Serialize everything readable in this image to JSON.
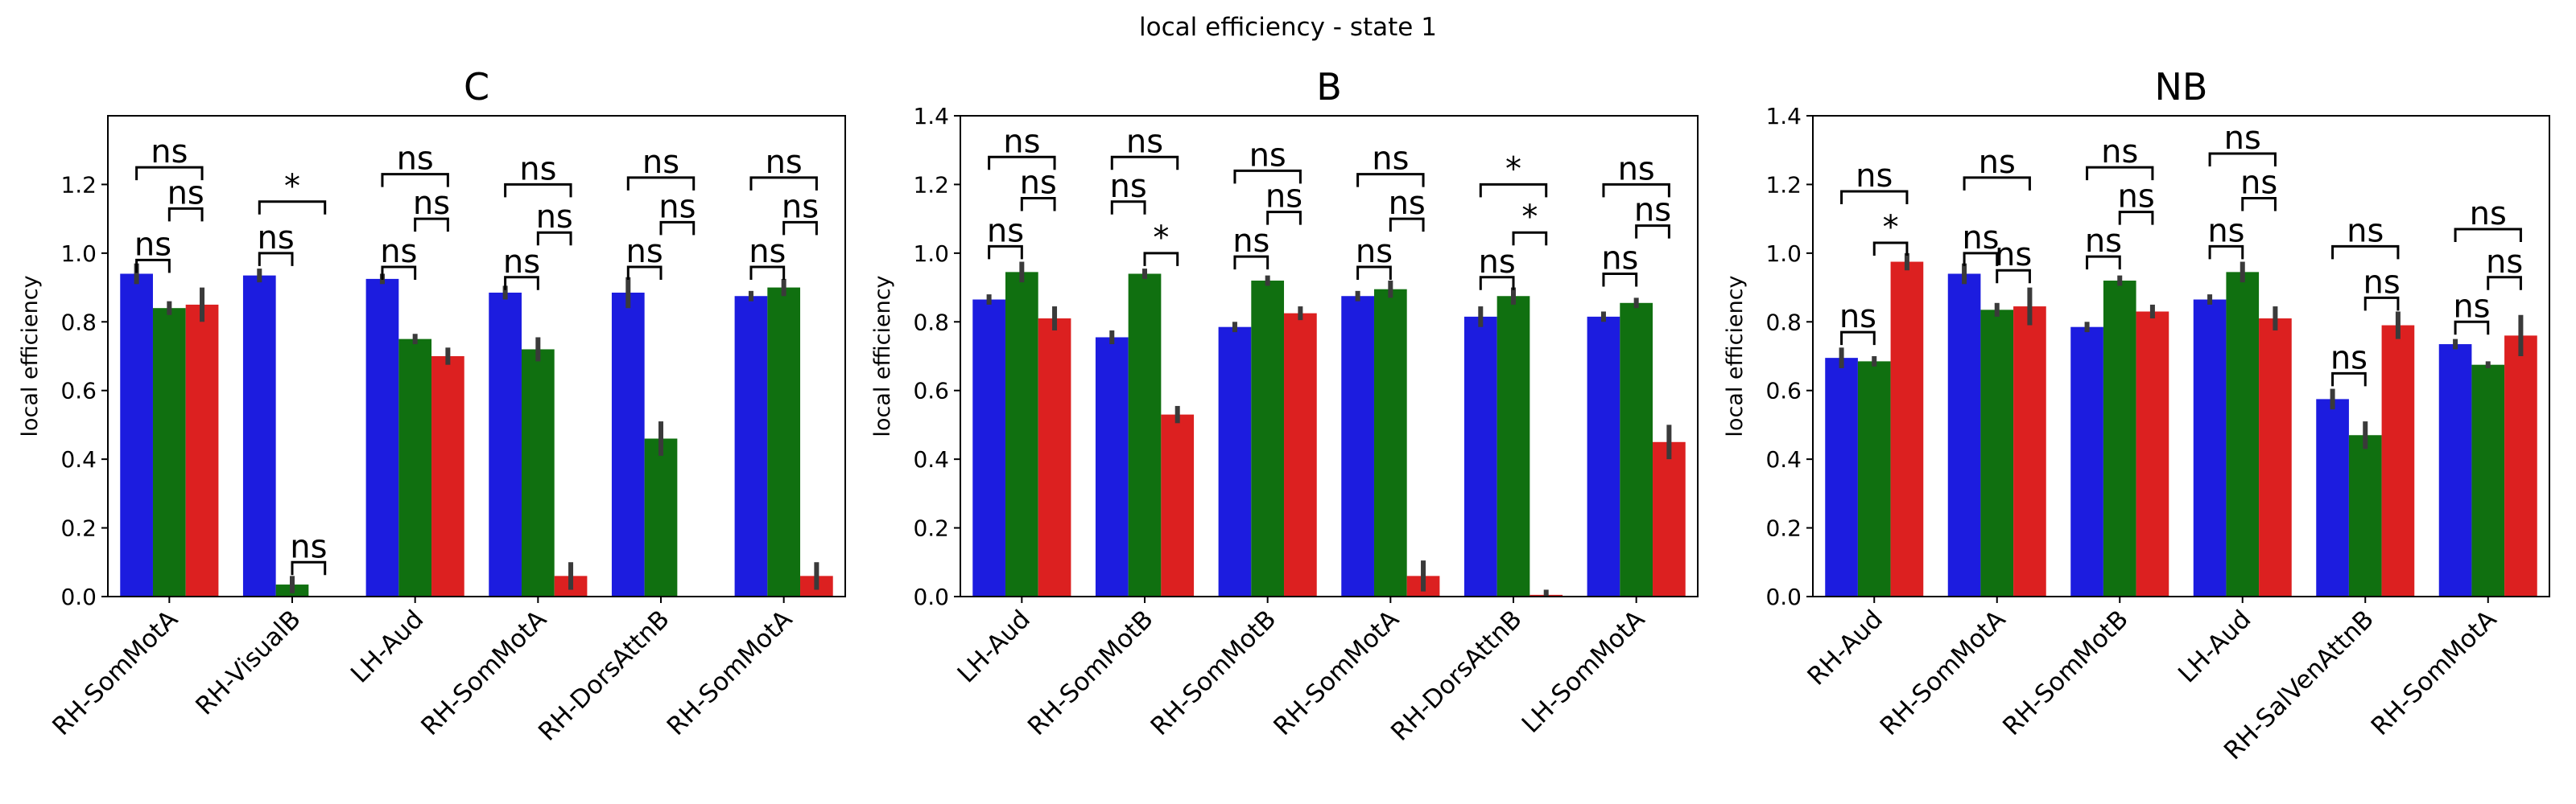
{
  "figure_title": "local efficiency - state 1",
  "series_colors": [
    "#1c1cdf",
    "#107010",
    "#dc2020"
  ],
  "errorbar_color": "#3a3a3a",
  "chart_data": [
    {
      "type": "bar",
      "title": "C",
      "ylabel": "local efficiency",
      "ylim": [
        0,
        1.4
      ],
      "yticks": [
        "0.0",
        "0.2",
        "0.4",
        "0.6",
        "0.8",
        "1.0",
        "1.2"
      ],
      "categories": [
        "RH-SomMotA",
        "RH-VisualB",
        "LH-Aud",
        "RH-SomMotA",
        "RH-DorsAttnB",
        "RH-SomMotA"
      ],
      "series": [
        {
          "values": [
            0.94,
            0.935,
            0.925,
            0.885,
            0.885,
            0.875
          ],
          "errors": [
            0.03,
            0.02,
            0.015,
            0.02,
            0.045,
            0.015
          ]
        },
        {
          "values": [
            0.84,
            0.035,
            0.75,
            0.72,
            0.46,
            0.9
          ],
          "errors": [
            0.02,
            0.025,
            0.015,
            0.035,
            0.05,
            0.025
          ]
        },
        {
          "values": [
            0.85,
            0.0,
            0.7,
            0.06,
            0.0,
            0.06
          ],
          "errors": [
            0.05,
            0.0,
            0.025,
            0.04,
            0.0,
            0.04
          ]
        }
      ],
      "annotations": [
        {
          "group": 0,
          "from": 0,
          "to": 1,
          "level": 0.98,
          "text": "ns"
        },
        {
          "group": 0,
          "from": 1,
          "to": 2,
          "level": 1.13,
          "text": "ns"
        },
        {
          "group": 0,
          "from": 0,
          "to": 2,
          "level": 1.25,
          "text": "ns"
        },
        {
          "group": 1,
          "from": 0,
          "to": 1,
          "level": 1.0,
          "text": "ns"
        },
        {
          "group": 1,
          "from": 1,
          "to": 2,
          "level": 0.1,
          "text": "ns"
        },
        {
          "group": 1,
          "from": 0,
          "to": 2,
          "level": 1.15,
          "text": "*"
        },
        {
          "group": 2,
          "from": 0,
          "to": 1,
          "level": 0.96,
          "text": "ns"
        },
        {
          "group": 2,
          "from": 1,
          "to": 2,
          "level": 1.1,
          "text": "ns"
        },
        {
          "group": 2,
          "from": 0,
          "to": 2,
          "level": 1.23,
          "text": "ns"
        },
        {
          "group": 3,
          "from": 0,
          "to": 1,
          "level": 0.93,
          "text": "ns"
        },
        {
          "group": 3,
          "from": 1,
          "to": 2,
          "level": 1.06,
          "text": "ns"
        },
        {
          "group": 3,
          "from": 0,
          "to": 2,
          "level": 1.2,
          "text": "ns"
        },
        {
          "group": 4,
          "from": 0,
          "to": 1,
          "level": 0.96,
          "text": "ns"
        },
        {
          "group": 4,
          "from": 1,
          "to": 2,
          "level": 1.09,
          "text": "ns"
        },
        {
          "group": 4,
          "from": 0,
          "to": 2,
          "level": 1.22,
          "text": "ns"
        },
        {
          "group": 5,
          "from": 0,
          "to": 1,
          "level": 0.96,
          "text": "ns"
        },
        {
          "group": 5,
          "from": 1,
          "to": 2,
          "level": 1.09,
          "text": "ns"
        },
        {
          "group": 5,
          "from": 0,
          "to": 2,
          "level": 1.22,
          "text": "ns"
        }
      ]
    },
    {
      "type": "bar",
      "title": "B",
      "ylabel": "local efficiency",
      "ylim": [
        0,
        1.4
      ],
      "yticks": [
        "0.0",
        "0.2",
        "0.4",
        "0.6",
        "0.8",
        "1.0",
        "1.2",
        "1.4"
      ],
      "categories": [
        "LH-Aud",
        "RH-SomMotB",
        "RH-SomMotB",
        "RH-SomMotA",
        "RH-DorsAttnB",
        "LH-SomMotA"
      ],
      "series": [
        {
          "values": [
            0.865,
            0.755,
            0.785,
            0.875,
            0.815,
            0.815
          ],
          "errors": [
            0.015,
            0.02,
            0.015,
            0.015,
            0.03,
            0.015
          ]
        },
        {
          "values": [
            0.945,
            0.94,
            0.92,
            0.895,
            0.875,
            0.855
          ],
          "errors": [
            0.03,
            0.015,
            0.015,
            0.025,
            0.025,
            0.015
          ]
        },
        {
          "values": [
            0.81,
            0.53,
            0.825,
            0.06,
            0.005,
            0.45
          ],
          "errors": [
            0.035,
            0.025,
            0.02,
            0.045,
            0.015,
            0.05
          ]
        }
      ],
      "annotations": [
        {
          "group": 0,
          "from": 0,
          "to": 1,
          "level": 1.02,
          "text": "ns"
        },
        {
          "group": 0,
          "from": 1,
          "to": 2,
          "level": 1.16,
          "text": "ns"
        },
        {
          "group": 0,
          "from": 0,
          "to": 2,
          "level": 1.28,
          "text": "ns"
        },
        {
          "group": 1,
          "from": 0,
          "to": 1,
          "level": 1.15,
          "text": "ns"
        },
        {
          "group": 1,
          "from": 1,
          "to": 2,
          "level": 1.0,
          "text": "*"
        },
        {
          "group": 1,
          "from": 0,
          "to": 2,
          "level": 1.28,
          "text": "ns"
        },
        {
          "group": 2,
          "from": 0,
          "to": 1,
          "level": 0.99,
          "text": "ns"
        },
        {
          "group": 2,
          "from": 1,
          "to": 2,
          "level": 1.12,
          "text": "ns"
        },
        {
          "group": 2,
          "from": 0,
          "to": 2,
          "level": 1.24,
          "text": "ns"
        },
        {
          "group": 3,
          "from": 0,
          "to": 1,
          "level": 0.96,
          "text": "ns"
        },
        {
          "group": 3,
          "from": 1,
          "to": 2,
          "level": 1.1,
          "text": "ns"
        },
        {
          "group": 3,
          "from": 0,
          "to": 2,
          "level": 1.23,
          "text": "ns"
        },
        {
          "group": 4,
          "from": 0,
          "to": 1,
          "level": 0.93,
          "text": "ns"
        },
        {
          "group": 4,
          "from": 1,
          "to": 2,
          "level": 1.06,
          "text": "*"
        },
        {
          "group": 4,
          "from": 0,
          "to": 2,
          "level": 1.2,
          "text": "*"
        },
        {
          "group": 5,
          "from": 0,
          "to": 1,
          "level": 0.94,
          "text": "ns"
        },
        {
          "group": 5,
          "from": 1,
          "to": 2,
          "level": 1.08,
          "text": "ns"
        },
        {
          "group": 5,
          "from": 0,
          "to": 2,
          "level": 1.2,
          "text": "ns"
        }
      ]
    },
    {
      "type": "bar",
      "title": "NB",
      "ylabel": "local efficiency",
      "ylim": [
        0,
        1.4
      ],
      "yticks": [
        "0.0",
        "0.2",
        "0.4",
        "0.6",
        "0.8",
        "1.0",
        "1.2",
        "1.4"
      ],
      "categories": [
        "RH-Aud",
        "RH-SomMotA",
        "RH-SomMotB",
        "LH-Aud",
        "RH-SalVenAttnB",
        "RH-SomMotA"
      ],
      "series": [
        {
          "values": [
            0.695,
            0.94,
            0.785,
            0.865,
            0.575,
            0.735
          ],
          "errors": [
            0.03,
            0.03,
            0.015,
            0.015,
            0.03,
            0.015
          ]
        },
        {
          "values": [
            0.685,
            0.835,
            0.92,
            0.945,
            0.47,
            0.675
          ],
          "errors": [
            0.015,
            0.02,
            0.015,
            0.03,
            0.04,
            0.01
          ]
        },
        {
          "values": [
            0.975,
            0.845,
            0.83,
            0.81,
            0.79,
            0.76
          ],
          "errors": [
            0.025,
            0.055,
            0.02,
            0.035,
            0.04,
            0.06
          ]
        }
      ],
      "annotations": [
        {
          "group": 0,
          "from": 0,
          "to": 1,
          "level": 0.77,
          "text": "ns"
        },
        {
          "group": 0,
          "from": 1,
          "to": 2,
          "level": 1.03,
          "text": "*"
        },
        {
          "group": 0,
          "from": 0,
          "to": 2,
          "level": 1.18,
          "text": "ns"
        },
        {
          "group": 1,
          "from": 0,
          "to": 1,
          "level": 1.0,
          "text": "ns"
        },
        {
          "group": 1,
          "from": 1,
          "to": 2,
          "level": 0.95,
          "text": "ns"
        },
        {
          "group": 1,
          "from": 0,
          "to": 2,
          "level": 1.22,
          "text": "ns"
        },
        {
          "group": 2,
          "from": 0,
          "to": 1,
          "level": 0.99,
          "text": "ns"
        },
        {
          "group": 2,
          "from": 1,
          "to": 2,
          "level": 1.12,
          "text": "ns"
        },
        {
          "group": 2,
          "from": 0,
          "to": 2,
          "level": 1.25,
          "text": "ns"
        },
        {
          "group": 3,
          "from": 0,
          "to": 1,
          "level": 1.02,
          "text": "ns"
        },
        {
          "group": 3,
          "from": 1,
          "to": 2,
          "level": 1.16,
          "text": "ns"
        },
        {
          "group": 3,
          "from": 0,
          "to": 2,
          "level": 1.29,
          "text": "ns"
        },
        {
          "group": 4,
          "from": 0,
          "to": 1,
          "level": 0.65,
          "text": "ns"
        },
        {
          "group": 4,
          "from": 1,
          "to": 2,
          "level": 0.87,
          "text": "ns"
        },
        {
          "group": 4,
          "from": 0,
          "to": 2,
          "level": 1.02,
          "text": "ns"
        },
        {
          "group": 5,
          "from": 0,
          "to": 1,
          "level": 0.8,
          "text": "ns"
        },
        {
          "group": 5,
          "from": 1,
          "to": 2,
          "level": 0.93,
          "text": "ns"
        },
        {
          "group": 5,
          "from": 0,
          "to": 2,
          "level": 1.07,
          "text": "ns"
        }
      ]
    }
  ]
}
